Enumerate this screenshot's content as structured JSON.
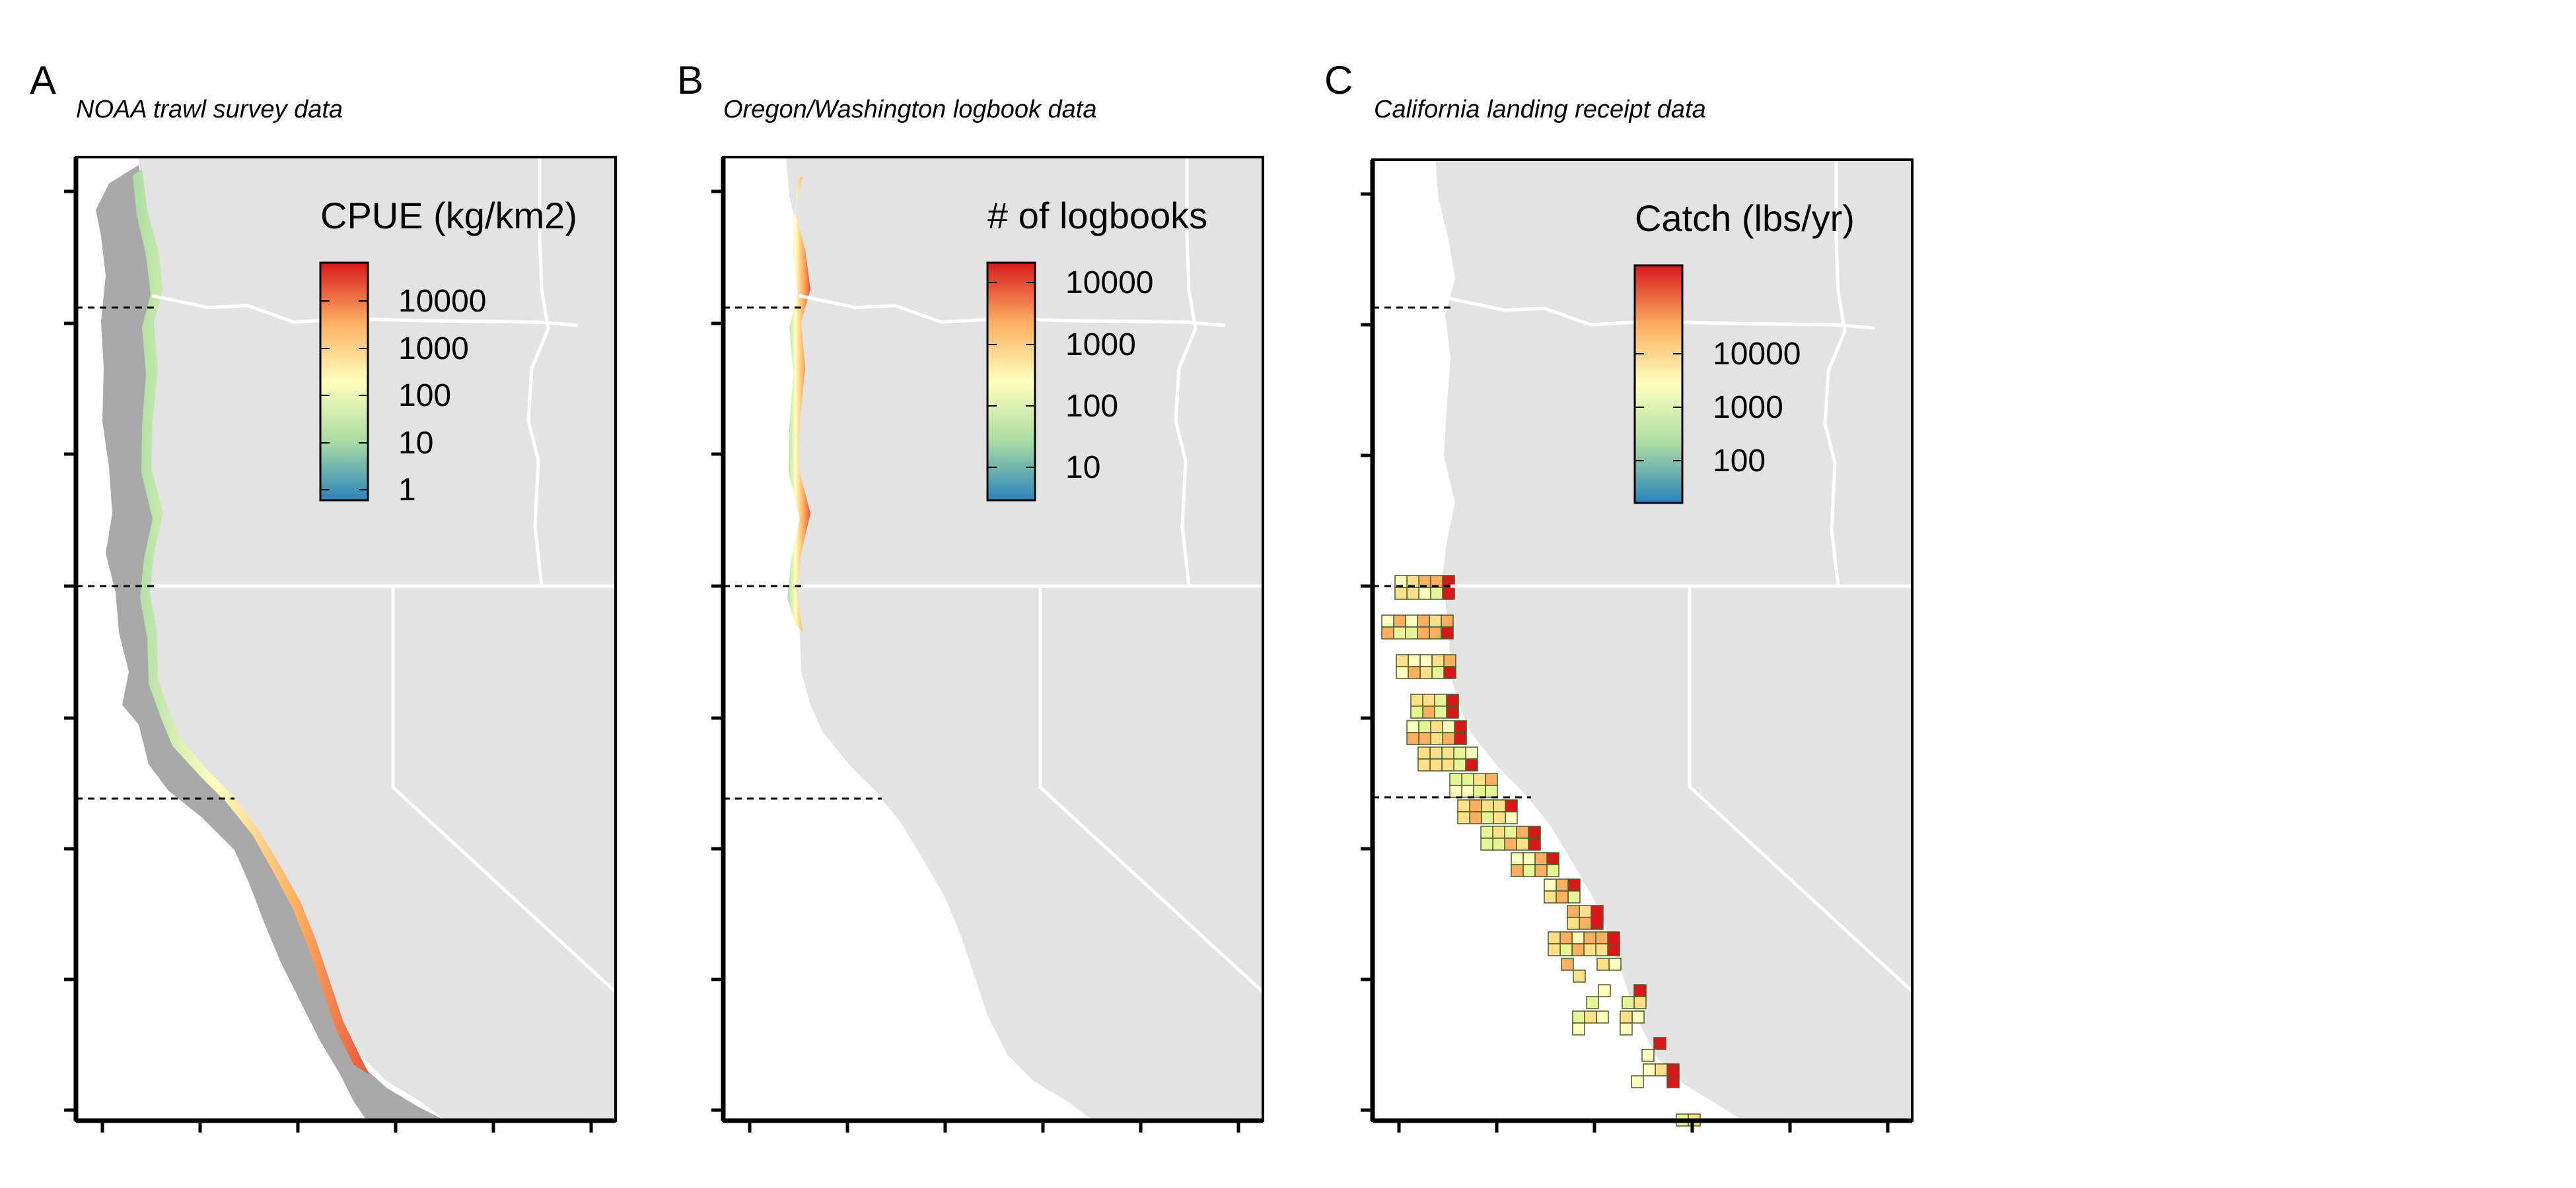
{
  "panels": [
    {
      "letter": "A",
      "title": "NOAA trawl survey data",
      "legend_title": "CPUE (kg/km2)",
      "legend_ticks": [
        "10000",
        "1000",
        "100",
        "10",
        "1"
      ],
      "layer": "survey"
    },
    {
      "letter": "B",
      "title": "Oregon/Washington logbook data",
      "legend_title": "# of logbooks",
      "legend_ticks": [
        "10000",
        "1000",
        "100",
        "10"
      ],
      "layer": "logbook"
    },
    {
      "letter": "C",
      "title": "California landing receipt data",
      "legend_title": "Catch (lbs/yr)",
      "legend_ticks": [
        "10000",
        "1000",
        "100"
      ],
      "layer": "landing"
    }
  ],
  "colors": {
    "land": "#e3e3e3",
    "borders": "#ffffff",
    "survey_gray": "#a9a9a9",
    "scale": [
      "#d7191c",
      "#fdae61",
      "#ffffbf",
      "#abdda4",
      "#2b83ba"
    ]
  }
}
